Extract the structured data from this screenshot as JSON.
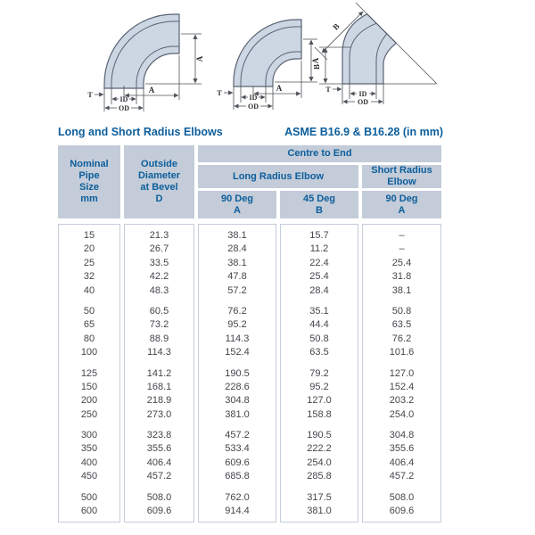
{
  "title": {
    "left": "Long and Short Radius Elbows",
    "right": "ASME B16.9 & B16.28 (in mm)"
  },
  "diagrams": {
    "lr90": {
      "dim_vertical": "A",
      "dim_horizontal": "A",
      "wall": "T",
      "id": "ID",
      "od": "OD"
    },
    "sr90": {
      "dim_vertical": "A",
      "dim_horizontal": "A",
      "wall": "T",
      "id": "ID",
      "od": "OD"
    },
    "e45": {
      "dim_diagonal": "B",
      "dim_vertical": "B",
      "wall": "T",
      "id": "ID",
      "od": "OD"
    }
  },
  "table": {
    "header": {
      "nominal_pipe_size": "Nominal\nPipe\nSize\nmm",
      "outside_diameter": "Outside\nDiameter\nat Bevel\nD",
      "centre_to_end": "Centre to End",
      "long_radius_elbow": "Long Radius Elbow",
      "short_radius_elbow": "Short Radius\nElbow",
      "lr_90": "90 Deg\nA",
      "lr_45": "45 Deg\nB",
      "sr_90": "90 Deg\nA"
    },
    "groups": [
      {
        "rows": [
          [
            "15",
            "21.3",
            "38.1",
            "15.7",
            "–"
          ],
          [
            "20",
            "26.7",
            "28.4",
            "11.2",
            "–"
          ],
          [
            "25",
            "33.5",
            "38.1",
            "22.4",
            "25.4"
          ],
          [
            "32",
            "42.2",
            "47.8",
            "25.4",
            "31.8"
          ],
          [
            "40",
            "48.3",
            "57.2",
            "28.4",
            "38.1"
          ]
        ]
      },
      {
        "rows": [
          [
            "50",
            "60.5",
            "76.2",
            "35.1",
            "50.8"
          ],
          [
            "65",
            "73.2",
            "95.2",
            "44.4",
            "63.5"
          ],
          [
            "80",
            "88.9",
            "114.3",
            "50.8",
            "76.2"
          ],
          [
            "100",
            "114.3",
            "152.4",
            "63.5",
            "101.6"
          ]
        ]
      },
      {
        "rows": [
          [
            "125",
            "141.2",
            "190.5",
            "79.2",
            "127.0"
          ],
          [
            "150",
            "168.1",
            "228.6",
            "95.2",
            "152.4"
          ],
          [
            "200",
            "218.9",
            "304.8",
            "127.0",
            "203.2"
          ],
          [
            "250",
            "273.0",
            "381.0",
            "158.8",
            "254.0"
          ]
        ]
      },
      {
        "rows": [
          [
            "300",
            "323.8",
            "457.2",
            "190.5",
            "304.8"
          ],
          [
            "350",
            "355.6",
            "533.4",
            "222.2",
            "355.6"
          ],
          [
            "400",
            "406.4",
            "609.6",
            "254.0",
            "406.4"
          ],
          [
            "450",
            "457.2",
            "685.8",
            "285.8",
            "457.2"
          ]
        ]
      },
      {
        "rows": [
          [
            "500",
            "508.0",
            "762.0",
            "317.5",
            "508.0"
          ],
          [
            "600",
            "609.6",
            "914.4",
            "381.0",
            "609.6"
          ]
        ]
      }
    ]
  },
  "colors": {
    "header_bg": "#c3ccd8",
    "header_text": "#0d5e9c",
    "pipe_fill": "#cdd6e3",
    "pipe_stroke": "#5a6373",
    "data_text": "#43464b",
    "cell_border": "#c6cdda",
    "dim_stroke": "#4d5258"
  }
}
